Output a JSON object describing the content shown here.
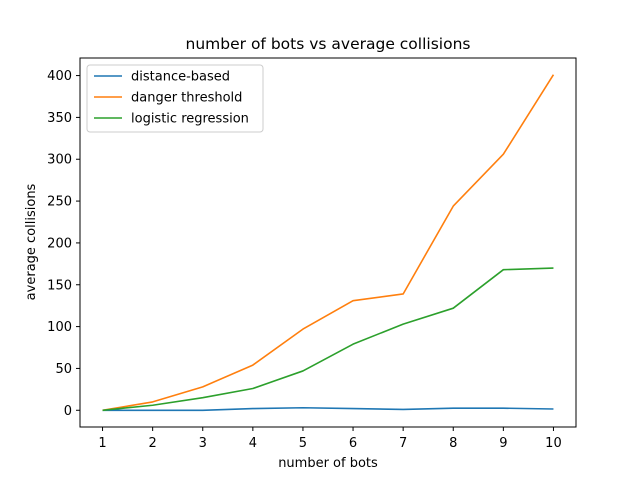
{
  "chart_data": {
    "type": "line",
    "title": "number of bots vs average collisions",
    "xlabel": "number of bots",
    "ylabel": "average collisions",
    "x": [
      1,
      2,
      3,
      4,
      5,
      6,
      7,
      8,
      9,
      10
    ],
    "xlim": [
      0.55,
      10.45
    ],
    "ylim": [
      -20,
      421
    ],
    "xticks": [
      "1",
      "2",
      "3",
      "4",
      "5",
      "6",
      "7",
      "8",
      "9",
      "10"
    ],
    "yticks": [
      0,
      50,
      100,
      150,
      200,
      250,
      300,
      350,
      400
    ],
    "grid": false,
    "legend_position": "top-left",
    "series": [
      {
        "name": "distance-based",
        "color": "#1f77b4",
        "values": [
          0,
          0,
          0,
          2,
          3,
          2,
          1,
          2.5,
          2.5,
          1.5
        ]
      },
      {
        "name": "danger threshold",
        "color": "#ff7f0e",
        "values": [
          0,
          10,
          28,
          54,
          97,
          131,
          139,
          244,
          306,
          401
        ]
      },
      {
        "name": "logistic regression",
        "color": "#2ca02c",
        "values": [
          0,
          6,
          15,
          26,
          47,
          79,
          103,
          122,
          168,
          170
        ]
      }
    ]
  }
}
